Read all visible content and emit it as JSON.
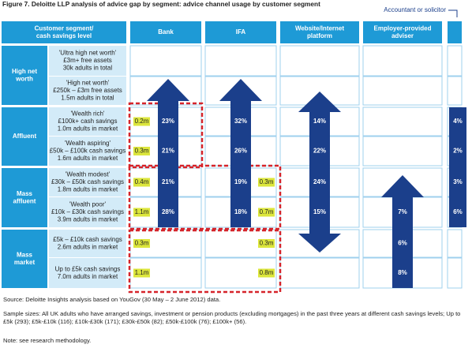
{
  "title": "Figure 7. Deloitte LLP analysis of advice gap by segment: advice channel usage by customer segment",
  "annotation": "Accountant or solicitor",
  "table": {
    "header": [
      [
        "Customer segment/",
        "cash savings level"
      ],
      [
        "Bank"
      ],
      [
        "IFA"
      ],
      [
        "Website/Internet",
        "platform"
      ],
      [
        "Employer-provided",
        "adviser"
      ]
    ],
    "groups": [
      [
        "High net",
        "worth"
      ],
      [
        "Affluent"
      ],
      [
        "Mass",
        "affluent"
      ],
      [
        "Mass",
        "market"
      ]
    ],
    "rows": [
      {
        "label": [
          "'Ultra high net worth'",
          "£3m+ free assets",
          "30k adults in total"
        ]
      },
      {
        "label": [
          "'High net worth'",
          "£250k – £3m free assets",
          "1.5m adults in total"
        ]
      },
      {
        "label": [
          "'Wealth rich'",
          "£100k+ cash savings",
          "1.0m adults in market"
        ],
        "bank_count": "0.2m",
        "bank": "23%",
        "ifa": "32%",
        "website": "14%",
        "accountant": "4%"
      },
      {
        "label": [
          "'Wealth aspiring'",
          "£50k – £100k cash savings",
          "1.6m adults in market"
        ],
        "bank_count": "0.3m",
        "bank": "21%",
        "ifa": "26%",
        "website": "22%",
        "accountant": "2%"
      },
      {
        "label": [
          "'Wealth modest'",
          "£30k – £50k cash savings",
          "1.8m adults in market"
        ],
        "bank_count": "0.4m",
        "bank": "21%",
        "ifa": "19%",
        "ifa_count": "0.3m",
        "website": "24%",
        "accountant": "3%"
      },
      {
        "label": [
          "'Wealth poor'",
          "£10k – £30k cash savings",
          "3.9m adults in market"
        ],
        "bank_count": "1.1m",
        "bank": "28%",
        "ifa": "18%",
        "ifa_count": "0.7m",
        "website": "15%",
        "employer": "7%",
        "accountant": "6%"
      },
      {
        "label": [
          "£5k – £10k cash savings",
          "2.6m adults in market"
        ],
        "bank_count": "0.3m",
        "ifa_count": "0.3m",
        "employer": "6%"
      },
      {
        "label": [
          "Up to £5k cash savings",
          "7.0m adults in market"
        ],
        "bank_count": "1.1m",
        "ifa_count": "0.8m",
        "employer": "8%"
      }
    ]
  },
  "footer": {
    "source": "Source: Deloitte Insights analysis based on YouGov (30 May – 2 June 2012) data.",
    "sample": "Sample sizes: All UK adults who have arranged savings, investment or pension products (excluding mortgages) in the past three years at different cash savings levels; Up to £5k (293); £5k-£10k (116); £10k-£30k (171); £30k-£50k (82); £50k-£100k (76); £100k+ (56).",
    "note": "Note: see research methodology."
  }
}
